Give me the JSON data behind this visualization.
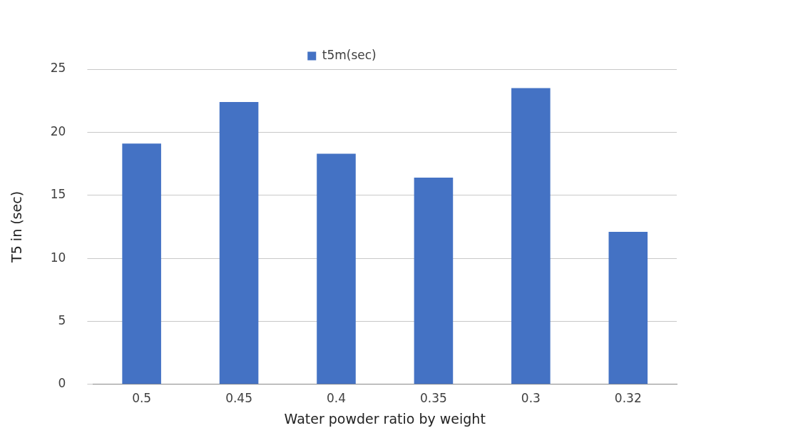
{
  "chart_data": {
    "type": "bar",
    "xlabel": "Water powder ratio by weight",
    "ylabel": "T5 in (sec)",
    "categories": [
      "0.5",
      "0.45",
      "0.4",
      "0.35",
      "0.3",
      "0.32"
    ],
    "series": [
      {
        "name": "t5m(sec)",
        "color": "#4472c4",
        "values": [
          19.1,
          22.4,
          18.3,
          16.4,
          23.5,
          12.1
        ]
      }
    ],
    "ylim": [
      0,
      25
    ],
    "yticks": [
      0,
      5,
      10,
      15,
      20,
      25
    ],
    "grid": "y",
    "legend": "top"
  }
}
